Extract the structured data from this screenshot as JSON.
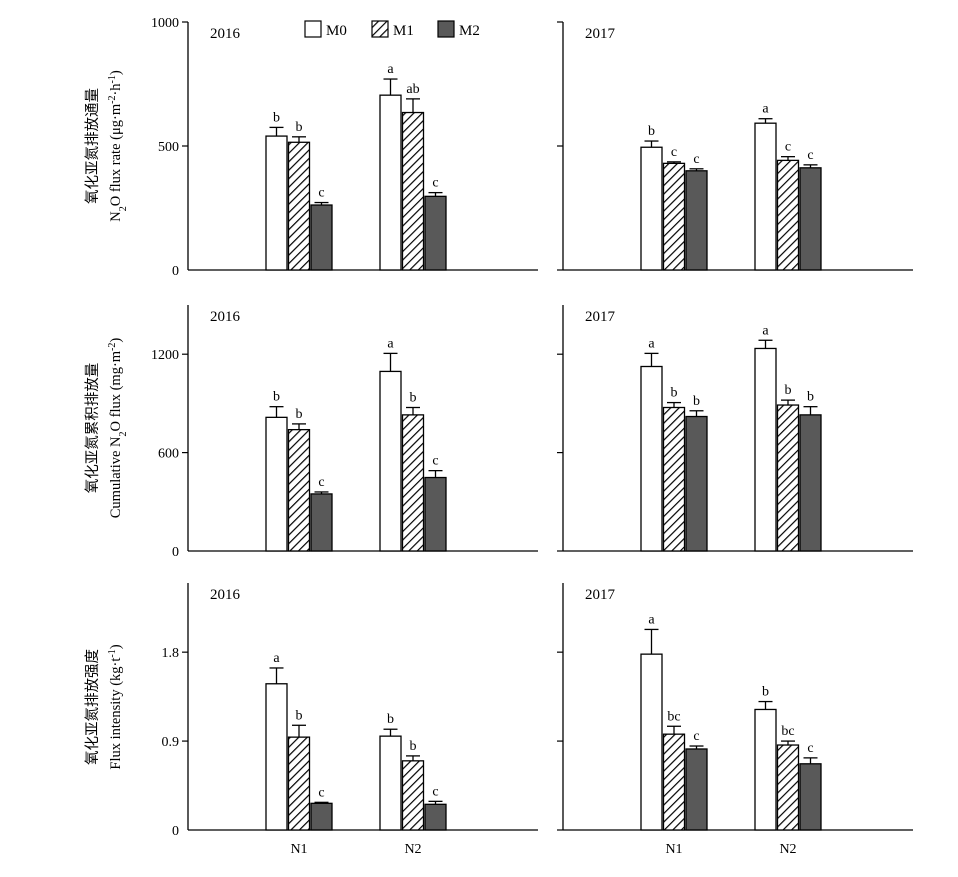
{
  "legend": [
    {
      "key": "M0",
      "label": "M0"
    },
    {
      "key": "M1",
      "label": "M1"
    },
    {
      "key": "M2",
      "label": "M2"
    }
  ],
  "colors": {
    "M0": "#ffffff",
    "M1": "hatch",
    "M2": "#595959",
    "stroke": "#000000"
  },
  "row_labels": [
    {
      "cn": "氧化亚氮排放通量",
      "en_parts": [
        "N",
        "2",
        "O flux rate (μg·m",
        "-2",
        "·h",
        "-1",
        ")"
      ]
    },
    {
      "cn": "氧化亚氮累积排放量",
      "en_parts": [
        "Cumulative N",
        "2",
        "O flux (mg·m",
        "-2",
        ")"
      ]
    },
    {
      "cn": "氧化亚氮排放强度",
      "en_parts": [
        "Flux intensity (kg·t",
        "-1",
        ")"
      ]
    }
  ],
  "x_categories": [
    "N1",
    "N2"
  ],
  "chart_data": [
    {
      "type": "bar",
      "panel": "2016",
      "row": 0,
      "col": 0,
      "categories": [
        "N1",
        "N2"
      ],
      "ylim": [
        0,
        1000
      ],
      "yticks": [
        "0",
        "500",
        "1000"
      ],
      "series": [
        {
          "name": "M0",
          "values": [
            540,
            705
          ],
          "errors": [
            35,
            65
          ],
          "letters": [
            "b",
            "a"
          ]
        },
        {
          "name": "M1",
          "values": [
            515,
            635
          ],
          "errors": [
            22,
            55
          ],
          "letters": [
            "b",
            "ab"
          ]
        },
        {
          "name": "M2",
          "values": [
            262,
            297
          ],
          "errors": [
            10,
            15
          ],
          "letters": [
            "c",
            "c"
          ]
        }
      ]
    },
    {
      "type": "bar",
      "panel": "2017",
      "row": 0,
      "col": 1,
      "categories": [
        "N1",
        "N2"
      ],
      "ylim": [
        0,
        1000
      ],
      "yticks": [],
      "series": [
        {
          "name": "M0",
          "values": [
            495,
            592
          ],
          "errors": [
            25,
            18
          ],
          "letters": [
            "b",
            "a"
          ]
        },
        {
          "name": "M1",
          "values": [
            430,
            442
          ],
          "errors": [
            6,
            15
          ],
          "letters": [
            "c",
            "c"
          ]
        },
        {
          "name": "M2",
          "values": [
            400,
            412
          ],
          "errors": [
            8,
            12
          ],
          "letters": [
            "c",
            "c"
          ]
        }
      ]
    },
    {
      "type": "bar",
      "panel": "2016",
      "row": 1,
      "col": 0,
      "categories": [
        "N1",
        "N2"
      ],
      "ylim": [
        0,
        1500
      ],
      "yticks": [
        "0",
        "600",
        "1200"
      ],
      "series": [
        {
          "name": "M0",
          "values": [
            815,
            1095
          ],
          "errors": [
            65,
            110
          ],
          "letters": [
            "b",
            "a"
          ]
        },
        {
          "name": "M1",
          "values": [
            740,
            830
          ],
          "errors": [
            35,
            45
          ],
          "letters": [
            "b",
            "b"
          ]
        },
        {
          "name": "M2",
          "values": [
            348,
            448
          ],
          "errors": [
            12,
            42
          ],
          "letters": [
            "c",
            "c"
          ]
        }
      ]
    },
    {
      "type": "bar",
      "panel": "2017",
      "row": 1,
      "col": 1,
      "categories": [
        "N1",
        "N2"
      ],
      "ylim": [
        0,
        1500
      ],
      "yticks": [],
      "series": [
        {
          "name": "M0",
          "values": [
            1125,
            1235
          ],
          "errors": [
            80,
            50
          ],
          "letters": [
            "a",
            "a"
          ]
        },
        {
          "name": "M1",
          "values": [
            875,
            890
          ],
          "errors": [
            30,
            30
          ],
          "letters": [
            "b",
            "b"
          ]
        },
        {
          "name": "M2",
          "values": [
            820,
            830
          ],
          "errors": [
            35,
            50
          ],
          "letters": [
            "b",
            "b"
          ]
        }
      ]
    },
    {
      "type": "bar",
      "panel": "2016",
      "row": 2,
      "col": 0,
      "categories": [
        "N1",
        "N2"
      ],
      "ylim": [
        0,
        2.5
      ],
      "yticks": [
        "0",
        "0.9",
        "1.8"
      ],
      "series": [
        {
          "name": "M0",
          "values": [
            1.48,
            0.95
          ],
          "errors": [
            0.16,
            0.07
          ],
          "letters": [
            "a",
            "b"
          ]
        },
        {
          "name": "M1",
          "values": [
            0.94,
            0.7
          ],
          "errors": [
            0.12,
            0.05
          ],
          "letters": [
            "b",
            "b"
          ]
        },
        {
          "name": "M2",
          "values": [
            0.27,
            0.26
          ],
          "errors": [
            0.01,
            0.03
          ],
          "letters": [
            "c",
            "c"
          ]
        }
      ]
    },
    {
      "type": "bar",
      "panel": "2017",
      "row": 2,
      "col": 1,
      "categories": [
        "N1",
        "N2"
      ],
      "ylim": [
        0,
        2.5
      ],
      "yticks": [],
      "series": [
        {
          "name": "M0",
          "values": [
            1.78,
            1.22
          ],
          "errors": [
            0.25,
            0.08
          ],
          "letters": [
            "a",
            "b"
          ]
        },
        {
          "name": "M1",
          "values": [
            0.97,
            0.86
          ],
          "errors": [
            0.08,
            0.04
          ],
          "letters": [
            "bc",
            "bc"
          ]
        },
        {
          "name": "M2",
          "values": [
            0.82,
            0.67
          ],
          "errors": [
            0.03,
            0.06
          ],
          "letters": [
            "c",
            "c"
          ]
        }
      ]
    }
  ]
}
